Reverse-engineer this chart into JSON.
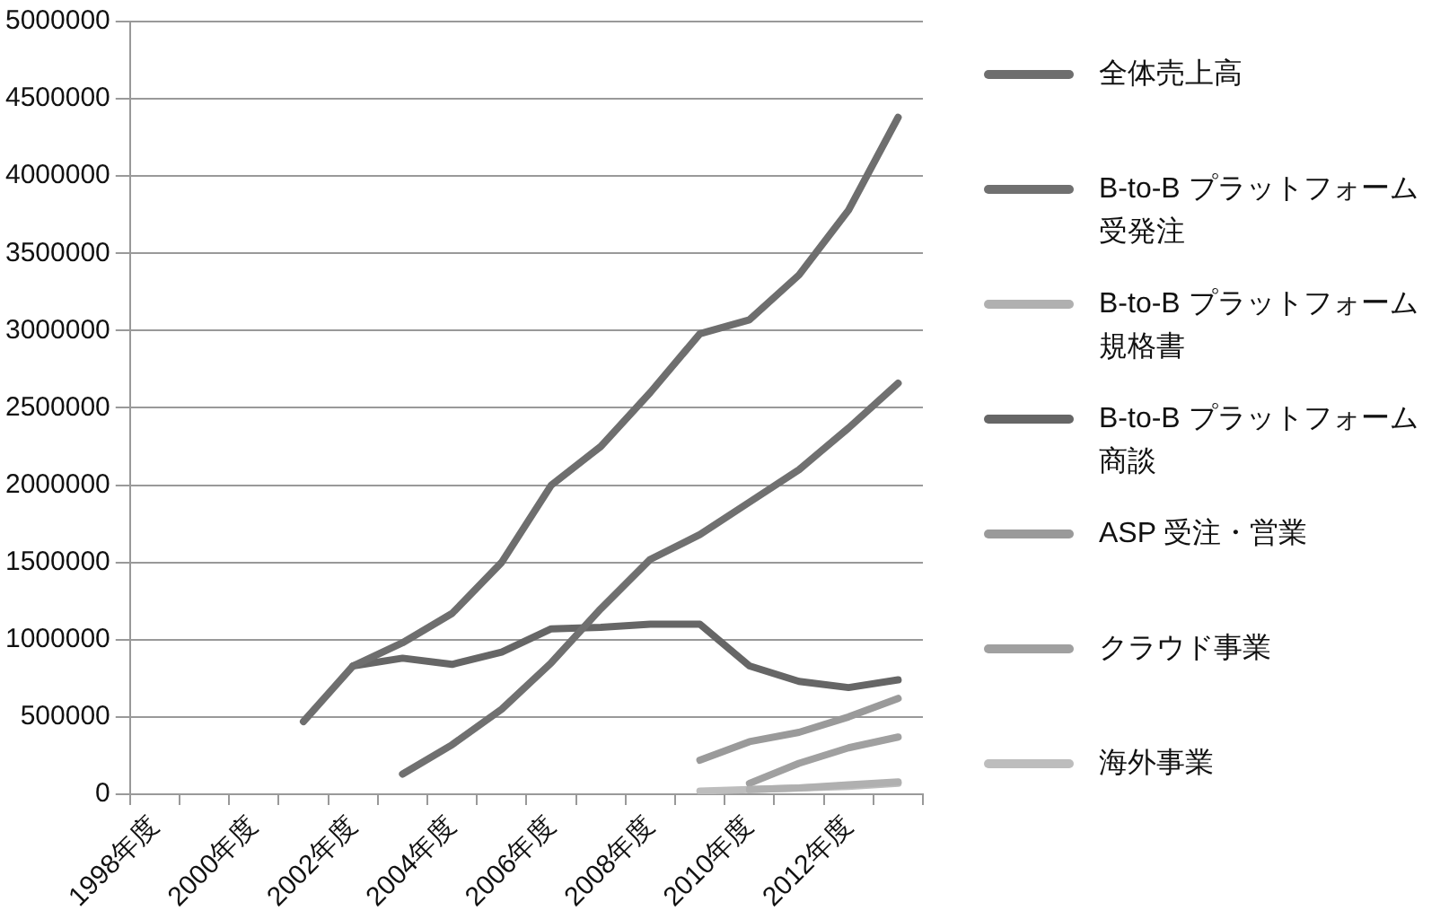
{
  "chart_data": {
    "type": "line",
    "categories": [
      "1998年度",
      null,
      "2000年度",
      null,
      "2002年度",
      null,
      "2004年度",
      null,
      "2006年度",
      null,
      "2008年度",
      null,
      "2010年度",
      null,
      "2012年度",
      null
    ],
    "series": [
      {
        "name": "全体売上高",
        "color": "#6e6e6e",
        "values": [
          null,
          null,
          null,
          470000,
          830000,
          980000,
          1170000,
          1500000,
          2000000,
          2250000,
          2600000,
          2980000,
          3070000,
          3360000,
          3780000,
          4380000
        ]
      },
      {
        "name": "B-to-B プラットフォーム受発注",
        "color": "#707070",
        "values": [
          null,
          null,
          null,
          null,
          null,
          130000,
          320000,
          550000,
          850000,
          1200000,
          1520000,
          1680000,
          1890000,
          2100000,
          2370000,
          2660000
        ]
      },
      {
        "name": "B-to-B プラットフォーム規格書",
        "color": "#b0b0b0",
        "values": [
          null,
          null,
          null,
          null,
          null,
          null,
          null,
          null,
          null,
          null,
          null,
          null,
          30000,
          40000,
          60000,
          80000
        ]
      },
      {
        "name": "B-to-B プラットフォーム商談",
        "color": "#666666",
        "values": [
          null,
          null,
          null,
          null,
          830000,
          880000,
          840000,
          920000,
          1070000,
          1080000,
          1100000,
          1100000,
          830000,
          730000,
          690000,
          740000
        ]
      },
      {
        "name": "ASP 受注・営業",
        "color": "#9a9a9a",
        "values": [
          null,
          null,
          null,
          null,
          null,
          null,
          null,
          null,
          null,
          null,
          null,
          220000,
          340000,
          400000,
          500000,
          620000
        ]
      },
      {
        "name": "クラウド事業",
        "color": "#a0a0a0",
        "values": [
          null,
          null,
          null,
          null,
          null,
          null,
          null,
          null,
          null,
          null,
          null,
          null,
          70000,
          200000,
          300000,
          370000
        ]
      },
      {
        "name": "海外事業",
        "color": "#bdbdbd",
        "values": [
          null,
          null,
          null,
          null,
          null,
          null,
          null,
          null,
          null,
          null,
          null,
          20000,
          30000,
          40000,
          50000,
          70000
        ]
      }
    ],
    "ylim": [
      0,
      5000000
    ],
    "yticks": [
      0,
      500000,
      1000000,
      1500000,
      2000000,
      2500000,
      3000000,
      3500000,
      4000000,
      4500000,
      5000000
    ],
    "grid": "y",
    "legend": "right",
    "marker": "none",
    "line_style": "solid"
  }
}
